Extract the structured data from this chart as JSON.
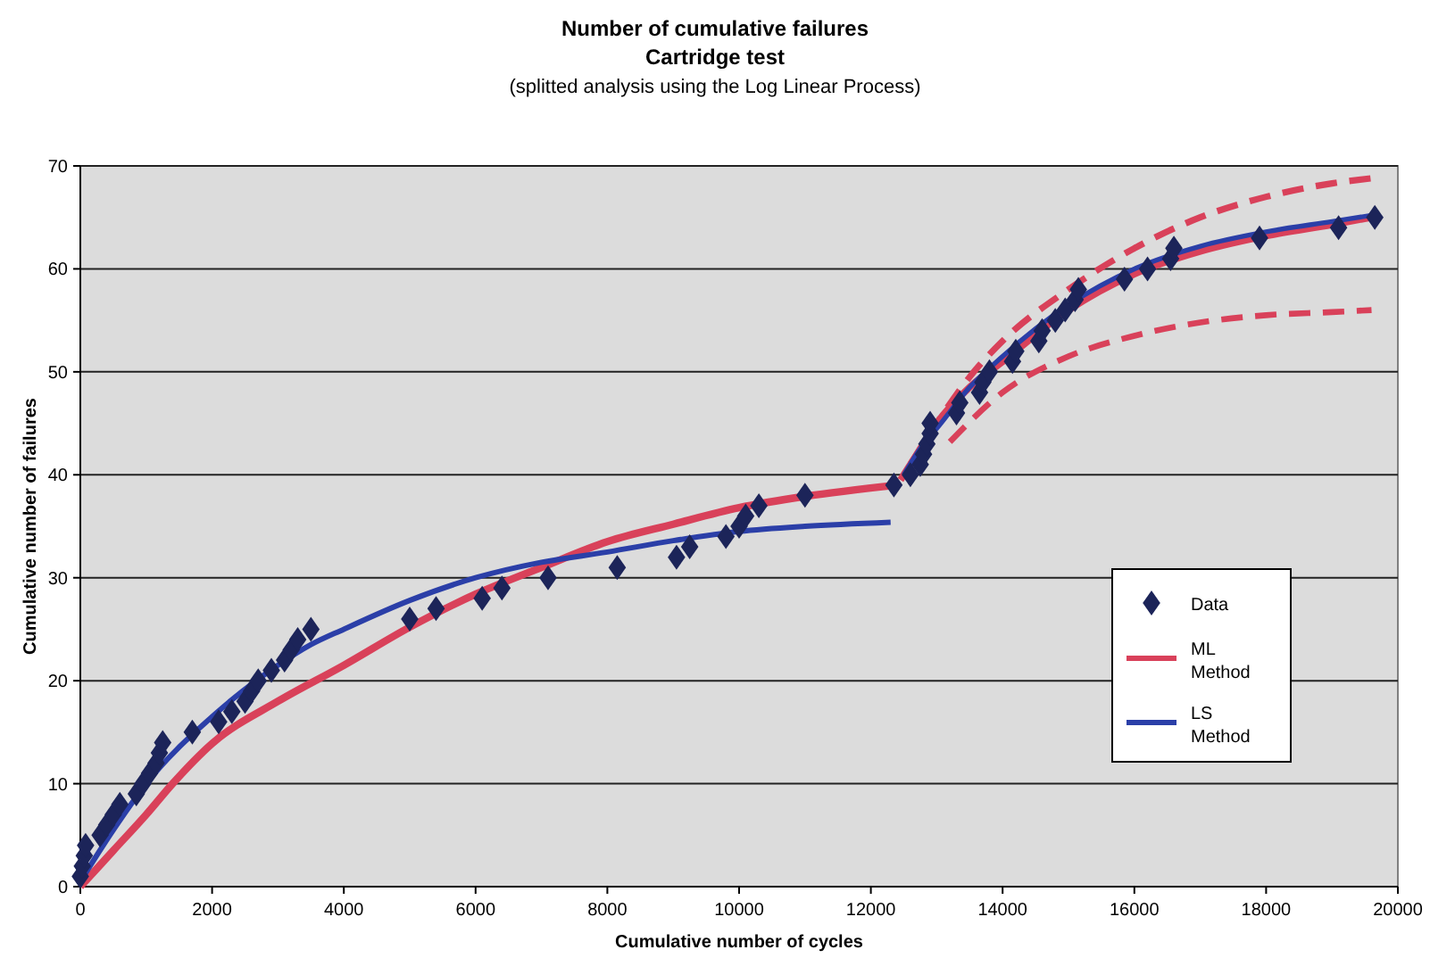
{
  "chart_data": {
    "type": "scatter",
    "title": "Number of cumulative failures",
    "subtitle": "Cartridge test",
    "annotations": [
      "(splitted analysis using the Log Linear Process)"
    ],
    "xlabel": "Cumulative number of cycles",
    "ylabel": "Cumulative number of failures",
    "xlim": [
      0,
      20000
    ],
    "xticks": [
      0,
      2000,
      4000,
      6000,
      8000,
      10000,
      12000,
      14000,
      16000,
      18000,
      20000
    ],
    "ylim": [
      0,
      70
    ],
    "yticks": [
      0,
      10,
      20,
      30,
      40,
      50,
      60,
      70
    ],
    "grid": "y",
    "legend": "right",
    "series": [
      {
        "name": "Data",
        "marker": "diamond",
        "color": "#1c2459",
        "x": [
          0,
          30,
          60,
          80,
          300,
          400,
          500,
          600,
          850,
          950,
          1050,
          1150,
          1200,
          1250,
          1700,
          2100,
          2300,
          2500,
          2600,
          2700,
          2900,
          3100,
          3200,
          3300,
          3500,
          5000,
          5400,
          6100,
          6400,
          7100,
          8150,
          9050,
          9250,
          9800,
          10000,
          10100,
          10300,
          11000,
          12350,
          12600,
          12750,
          12800,
          12850,
          12900,
          12900,
          13300,
          13350,
          13650,
          13700,
          13800,
          14150,
          14200,
          14550,
          14600,
          14800,
          14950,
          15100,
          15150,
          15850,
          16200,
          16550,
          16600,
          17900,
          19100,
          19650
        ],
        "values": [
          1,
          2,
          3,
          4,
          5,
          6,
          7,
          8,
          9,
          10,
          11,
          12,
          13,
          14,
          15,
          16,
          17,
          18,
          19,
          20,
          21,
          22,
          23,
          24,
          25,
          26,
          27,
          28,
          29,
          30,
          31,
          32,
          33,
          34,
          35,
          36,
          37,
          38,
          39,
          40,
          41,
          42,
          43,
          44,
          45,
          46,
          47,
          48,
          49,
          50,
          51,
          52,
          53,
          54,
          55,
          56,
          57,
          58,
          59,
          60,
          61,
          62,
          63,
          64,
          65
        ]
      },
      {
        "name": "ML Method",
        "type": "line",
        "marker": "none",
        "line_style": "solid",
        "color": "#d9415a",
        "x": [
          0,
          500,
          1000,
          1400,
          2000,
          3000,
          4000,
          5000,
          6000,
          7000,
          8000,
          9000,
          10000,
          11000,
          12400
        ],
        "values": [
          0,
          3.5,
          7,
          10,
          13.9,
          18,
          21.5,
          25.2,
          28.4,
          31,
          33.5,
          35.2,
          36.8,
          37.9,
          39
        ]
      },
      {
        "type": "line",
        "marker": "none",
        "line_style": "solid",
        "color": "#d9415a",
        "x": [
          12450,
          12700,
          13000,
          13500,
          14000,
          15000,
          16000,
          17000,
          18000,
          19000,
          19600
        ],
        "values": [
          39.5,
          42,
          45,
          48.5,
          51,
          56,
          59.5,
          61.7,
          63.2,
          64.3,
          65
        ]
      },
      {
        "type": "line",
        "marker": "none",
        "line_style": "dashed",
        "color": "#d9415a",
        "x": [
          12600,
          13000,
          13500,
          14000,
          15000,
          16000,
          17000,
          18000,
          19000,
          19600
        ],
        "values": [
          41,
          45,
          49.5,
          53,
          58,
          62,
          65,
          67,
          68.3,
          68.8
        ]
      },
      {
        "type": "line",
        "marker": "none",
        "line_style": "dashed",
        "color": "#d9415a",
        "x": [
          13200,
          14000,
          15000,
          16000,
          17000,
          18000,
          19000,
          19600
        ],
        "values": [
          43.2,
          48,
          51.5,
          53.5,
          54.8,
          55.5,
          55.8,
          56
        ]
      },
      {
        "name": "LS Method",
        "type": "line",
        "marker": "none",
        "line_style": "solid",
        "color": "#2b3fa8",
        "x": [
          0,
          500,
          1000,
          2000,
          3000,
          3500,
          4000,
          5000,
          6000,
          7000,
          8000,
          9000,
          10000,
          11000,
          12300
        ],
        "values": [
          0.5,
          5.5,
          10,
          16.5,
          21.5,
          23.5,
          25,
          27.8,
          30,
          31.5,
          32.5,
          33.6,
          34.5,
          35,
          35.4
        ]
      },
      {
        "type": "line",
        "marker": "none",
        "line_style": "solid",
        "color": "#2b3fa8",
        "x": [
          12500,
          12800,
          13000,
          13500,
          14000,
          15000,
          16000,
          17000,
          18000,
          19000,
          19600
        ],
        "values": [
          40,
          43,
          44.5,
          48.5,
          51.5,
          56.5,
          60,
          62.2,
          63.6,
          64.6,
          65.2
        ]
      }
    ]
  }
}
